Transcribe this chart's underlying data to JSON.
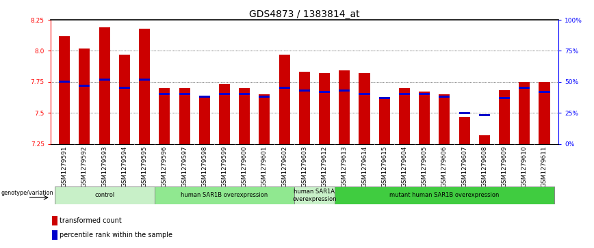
{
  "title": "GDS4873 / 1383814_at",
  "samples": [
    "GSM1279591",
    "GSM1279592",
    "GSM1279593",
    "GSM1279594",
    "GSM1279595",
    "GSM1279596",
    "GSM1279597",
    "GSM1279598",
    "GSM1279599",
    "GSM1279600",
    "GSM1279601",
    "GSM1279602",
    "GSM1279603",
    "GSM1279612",
    "GSM1279613",
    "GSM1279614",
    "GSM1279615",
    "GSM1279604",
    "GSM1279605",
    "GSM1279606",
    "GSM1279607",
    "GSM1279608",
    "GSM1279609",
    "GSM1279610",
    "GSM1279611"
  ],
  "red_values": [
    8.12,
    8.02,
    8.19,
    7.97,
    8.18,
    7.7,
    7.7,
    7.63,
    7.73,
    7.7,
    7.65,
    7.97,
    7.83,
    7.82,
    7.84,
    7.82,
    7.62,
    7.7,
    7.67,
    7.65,
    7.47,
    7.32,
    7.68,
    7.75,
    7.75
  ],
  "blue_values": [
    7.75,
    7.72,
    7.77,
    7.7,
    7.77,
    7.65,
    7.65,
    7.63,
    7.65,
    7.65,
    7.63,
    7.7,
    7.68,
    7.67,
    7.68,
    7.65,
    7.62,
    7.65,
    7.65,
    7.63,
    7.5,
    7.48,
    7.62,
    7.7,
    7.67
  ],
  "ymin": 7.25,
  "ymax": 8.25,
  "yticks_left": [
    7.25,
    7.5,
    7.75,
    8.0,
    8.25
  ],
  "yticks_right": [
    0,
    25,
    50,
    75,
    100
  ],
  "ytick_labels_right": [
    "0%",
    "25%",
    "50%",
    "75%",
    "100%"
  ],
  "groups": [
    {
      "label": "control",
      "start": 0,
      "end": 4,
      "color": "#c8f0c8"
    },
    {
      "label": "human SAR1B overexpression",
      "start": 5,
      "end": 11,
      "color": "#90e890"
    },
    {
      "label": "human SAR1A\noverexpression",
      "start": 12,
      "end": 13,
      "color": "#c8f0c8"
    },
    {
      "label": "mutant human SAR1B overexpression",
      "start": 14,
      "end": 24,
      "color": "#40cc40"
    }
  ],
  "legend_items": [
    {
      "label": "transformed count",
      "color": "#cc0000"
    },
    {
      "label": "percentile rank within the sample",
      "color": "#0000cc"
    }
  ],
  "bar_color": "#cc0000",
  "dot_color": "#0000cc",
  "bar_width": 0.55,
  "background_color": "#ffffff",
  "plot_bg_color": "#ffffff",
  "title_fontsize": 10,
  "tick_fontsize": 6.5,
  "label_fontsize": 7
}
